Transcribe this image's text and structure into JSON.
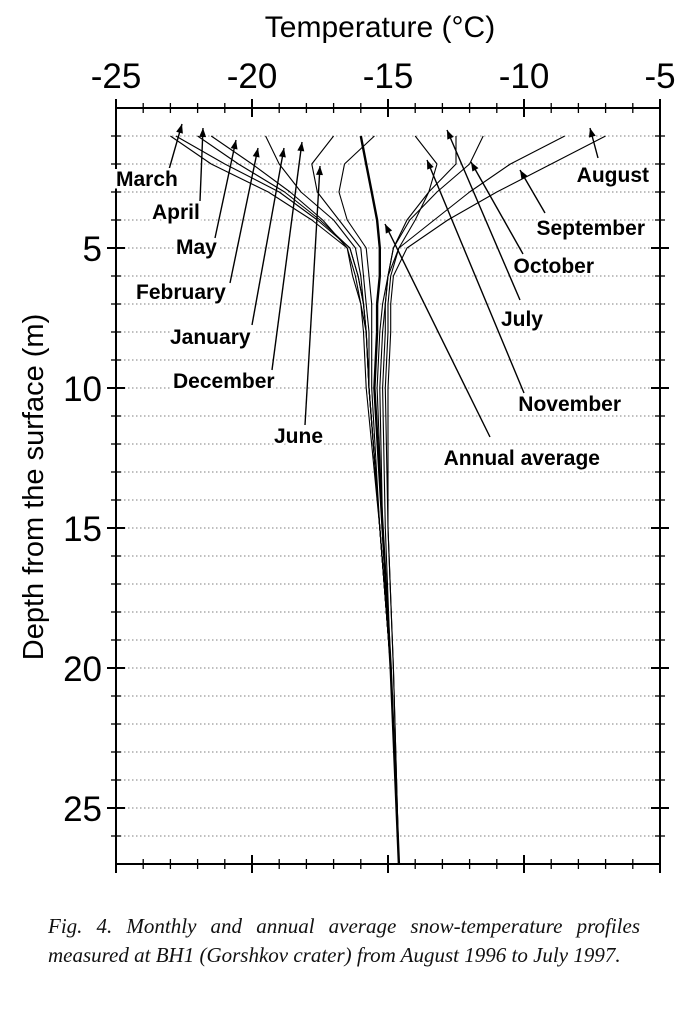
{
  "chart_data": {
    "type": "line",
    "xlabel": "Temperature (°C)",
    "ylabel": "Depth from the surface (m)",
    "xlim": [
      -25,
      -5
    ],
    "ylim": [
      27,
      0
    ],
    "x_ticks": [
      "-25",
      "-20",
      "-15",
      "-10",
      "-5"
    ],
    "y_ticks": [
      "5",
      "10",
      "15",
      "20",
      "25"
    ],
    "x_axis_position": "top",
    "y_axis_direction": "depth increases downward",
    "grid": "horizontal dotted every 1 m",
    "series": [
      {
        "name": "August",
        "depth": [
          1.0,
          2.0,
          3.0,
          4.0,
          5.0,
          6.0,
          7.0,
          8.0,
          10.0,
          15.0,
          20.0,
          27.0
        ],
        "temp": [
          -7.0,
          -9.0,
          -11.0,
          -12.8,
          -14.3,
          -14.8,
          -14.9,
          -14.9,
          -15.0,
          -15.0,
          -14.8,
          -14.6
        ]
      },
      {
        "name": "September",
        "depth": [
          1.0,
          2.0,
          3.0,
          4.0,
          5.0,
          6.0,
          7.0,
          8.0,
          10.0,
          15.0,
          20.0,
          27.0
        ],
        "temp": [
          -8.5,
          -10.5,
          -12.0,
          -13.3,
          -14.6,
          -14.9,
          -15.0,
          -15.0,
          -15.1,
          -15.0,
          -14.8,
          -14.6
        ]
      },
      {
        "name": "October",
        "depth": [
          1.0,
          2.0,
          3.0,
          4.0,
          5.0,
          6.0,
          7.0,
          8.0,
          10.0,
          15.0,
          20.0,
          27.0
        ],
        "temp": [
          -11.5,
          -12.0,
          -13.2,
          -14.2,
          -14.8,
          -15.0,
          -15.1,
          -15.1,
          -15.2,
          -15.1,
          -14.9,
          -14.6
        ]
      },
      {
        "name": "July",
        "depth": [
          1.0,
          2.0,
          3.0,
          4.0,
          5.0,
          6.0,
          7.0,
          8.0,
          10.0,
          15.0,
          20.0,
          27.0
        ],
        "temp": [
          -12.5,
          -12.5,
          -13.5,
          -14.3,
          -14.8,
          -15.0,
          -15.1,
          -15.2,
          -15.3,
          -15.2,
          -14.9,
          -14.6
        ]
      },
      {
        "name": "November",
        "depth": [
          1.0,
          2.0,
          3.0,
          4.0,
          5.0,
          6.0,
          7.0,
          8.0,
          10.0,
          15.0,
          20.0,
          27.0
        ],
        "temp": [
          -14.0,
          -13.2,
          -13.5,
          -14.0,
          -14.6,
          -15.0,
          -15.2,
          -15.3,
          -15.4,
          -15.2,
          -14.9,
          -14.6
        ]
      },
      {
        "name": "Annual average",
        "depth": [
          1.0,
          2.0,
          3.0,
          4.0,
          5.0,
          6.0,
          7.0,
          8.0,
          10.0,
          15.0,
          20.0,
          27.0
        ],
        "temp": [
          -16.0,
          -15.8,
          -15.6,
          -15.4,
          -15.3,
          -15.3,
          -15.4,
          -15.4,
          -15.5,
          -15.2,
          -14.9,
          -14.6
        ]
      },
      {
        "name": "June",
        "depth": [
          1.0,
          2.0,
          3.0,
          4.0,
          5.0,
          6.0,
          7.0,
          8.0,
          10.0,
          15.0,
          20.0,
          27.0
        ],
        "temp": [
          -15.5,
          -16.6,
          -16.8,
          -16.5,
          -15.8,
          -15.7,
          -15.6,
          -15.6,
          -15.6,
          -15.3,
          -14.9,
          -14.6
        ]
      },
      {
        "name": "December",
        "depth": [
          1.0,
          2.0,
          3.0,
          4.0,
          5.0,
          6.0,
          7.0,
          8.0,
          10.0,
          15.0,
          20.0,
          27.0
        ],
        "temp": [
          -17.0,
          -17.8,
          -17.6,
          -16.8,
          -16.0,
          -15.9,
          -15.8,
          -15.7,
          -15.7,
          -15.3,
          -14.9,
          -14.6
        ]
      },
      {
        "name": "January",
        "depth": [
          1.0,
          2.0,
          3.0,
          4.0,
          5.0,
          6.0,
          7.0,
          8.0,
          10.0,
          15.0,
          20.0,
          27.0
        ],
        "temp": [
          -19.5,
          -19.0,
          -18.2,
          -17.0,
          -16.2,
          -16.0,
          -15.9,
          -15.8,
          -15.7,
          -15.3,
          -14.9,
          -14.6
        ]
      },
      {
        "name": "February",
        "depth": [
          1.0,
          2.0,
          3.0,
          4.0,
          5.0,
          6.0,
          7.0,
          8.0,
          10.0,
          15.0,
          20.0,
          27.0
        ],
        "temp": [
          -21.5,
          -20.0,
          -18.6,
          -17.4,
          -16.5,
          -16.3,
          -16.0,
          -15.9,
          -15.8,
          -15.3,
          -14.9,
          -14.6
        ]
      },
      {
        "name": "May",
        "depth": [
          1.0,
          2.0,
          3.0,
          4.0,
          5.0,
          6.0,
          7.0,
          8.0,
          10.0,
          15.0,
          20.0,
          27.0
        ],
        "temp": [
          -22.0,
          -20.5,
          -18.8,
          -17.5,
          -16.4,
          -16.1,
          -15.9,
          -15.8,
          -15.7,
          -15.3,
          -14.9,
          -14.6
        ]
      },
      {
        "name": "April",
        "depth": [
          1.0,
          2.0,
          3.0,
          4.0,
          5.0,
          6.0,
          7.0,
          8.0,
          10.0,
          15.0,
          20.0,
          27.0
        ],
        "temp": [
          -22.8,
          -21.0,
          -19.0,
          -17.6,
          -16.4,
          -16.1,
          -15.9,
          -15.8,
          -15.7,
          -15.3,
          -14.9,
          -14.6
        ]
      },
      {
        "name": "March",
        "depth": [
          1.0,
          2.0,
          3.0,
          4.0,
          5.0,
          6.0,
          7.0,
          8.0,
          10.0,
          15.0,
          20.0,
          27.0
        ],
        "temp": [
          -23.0,
          -21.5,
          -19.4,
          -17.8,
          -16.5,
          -16.2,
          -16.0,
          -15.8,
          -15.7,
          -15.3,
          -14.9,
          -14.6
        ]
      }
    ],
    "annotations": [
      {
        "text": "March",
        "series": "March"
      },
      {
        "text": "April",
        "series": "April"
      },
      {
        "text": "May",
        "series": "May"
      },
      {
        "text": "February",
        "series": "February"
      },
      {
        "text": "January",
        "series": "January"
      },
      {
        "text": "December",
        "series": "December"
      },
      {
        "text": "June",
        "series": "June"
      },
      {
        "text": "August",
        "series": "August"
      },
      {
        "text": "September",
        "series": "September"
      },
      {
        "text": "October",
        "series": "October"
      },
      {
        "text": "July",
        "series": "July"
      },
      {
        "text": "November",
        "series": "November"
      },
      {
        "text": "Annual average",
        "series": "Annual average"
      }
    ]
  },
  "caption": "Fig. 4. Monthly and annual average snow-temperature profiles measured at BH1 (Gorshkov crater) from August 1996 to July 1997."
}
